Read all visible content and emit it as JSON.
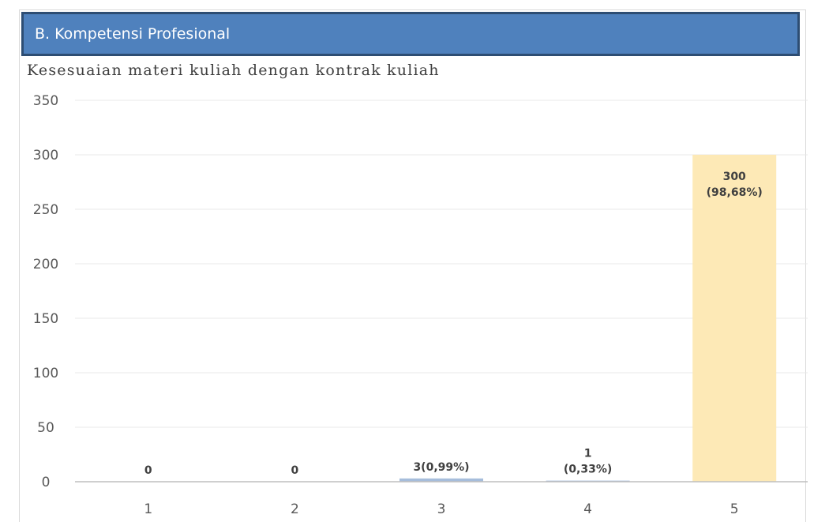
{
  "header": {
    "section_title": "B. Kompetensi Profesional"
  },
  "chart_data": {
    "type": "bar",
    "title": "Kesesuaian materi kuliah dengan kontrak kuliah",
    "categories": [
      "1",
      "2",
      "3",
      "4",
      "5"
    ],
    "values": [
      0,
      0,
      3,
      1,
      300
    ],
    "data_labels": [
      [
        "0"
      ],
      [
        "0"
      ],
      [
        "3(0,99%)"
      ],
      [
        "1",
        "(0,33%)"
      ],
      [
        "300",
        "(98,68%)"
      ]
    ],
    "bar_colors": [
      "#a6bddb",
      "#a6bddb",
      "#a6bddb",
      "#a6bddb",
      "#fde9b6"
    ],
    "ylim": [
      0,
      350
    ],
    "yticks": [
      0,
      50,
      100,
      150,
      200,
      250,
      300,
      350
    ],
    "grid": true,
    "xlabel": "",
    "ylabel": ""
  },
  "colors": {
    "banner_bg": "#4f81bd",
    "banner_border": "#2d4d73",
    "grid": "#e8e8e8",
    "axis": "#bfbfbf"
  }
}
